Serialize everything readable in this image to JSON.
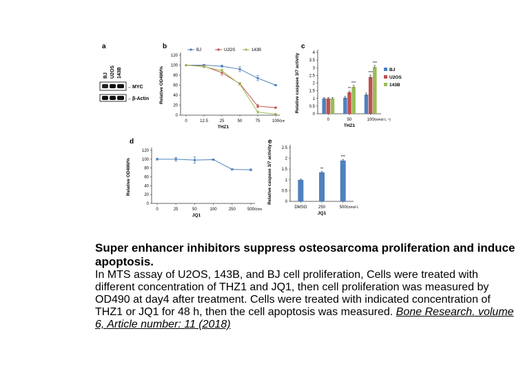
{
  "figure": {
    "panel_a": {
      "label": "a",
      "lanes": [
        "BJ",
        "U2OS",
        "143B"
      ],
      "bands": [
        "MYC",
        "β-Actin"
      ],
      "band_prefix": "←"
    },
    "panel_labels": [
      "b",
      "c",
      "d",
      "e"
    ]
  },
  "chart_data": [
    {
      "id": "b",
      "type": "line",
      "ylabel": "Relative OD490/%",
      "xlabel": "THZ1",
      "categories": [
        "0",
        "12.5",
        "25",
        "50",
        "75",
        "100"
      ],
      "x_unit": "/(nmol·L⁻¹)",
      "ylim": [
        0,
        120
      ],
      "yticks": [
        0,
        20,
        40,
        60,
        80,
        100,
        120
      ],
      "legend": "top",
      "series": [
        {
          "name": "BJ",
          "color": "#4f81bd",
          "values": [
            100,
            100,
            98,
            92,
            74,
            60
          ],
          "err": [
            0,
            1,
            2,
            5,
            5,
            1
          ]
        },
        {
          "name": "U2OS",
          "color": "#c0504d",
          "values": [
            100,
            98,
            85,
            63,
            18,
            15
          ],
          "err": [
            0,
            2,
            5,
            2,
            3,
            1
          ]
        },
        {
          "name": "143B",
          "color": "#9bbb59",
          "values": [
            100,
            97,
            89,
            62,
            6,
            2
          ],
          "err": [
            0,
            2,
            3,
            2,
            2,
            1
          ]
        }
      ]
    },
    {
      "id": "c",
      "type": "bar",
      "ylabel": "Relative caspase 3/7 activity",
      "xlabel": "THZ1",
      "categories": [
        "0",
        "50",
        "100"
      ],
      "x_unit": "/(nmol·L⁻¹)",
      "ylim": [
        0,
        4
      ],
      "yticks": [
        0,
        0.5,
        1,
        1.5,
        2,
        2.5,
        3,
        3.5,
        4
      ],
      "legend": "right",
      "series": [
        {
          "name": "BJ",
          "color": "#4f81bd",
          "values": [
            1.0,
            1.05,
            1.25
          ],
          "err": [
            0.05,
            0.08,
            0.1
          ]
        },
        {
          "name": "U2OS",
          "color": "#c0504d",
          "values": [
            1.0,
            1.4,
            2.4
          ],
          "err": [
            0.05,
            0.08,
            0.12
          ]
        },
        {
          "name": "143B",
          "color": "#9bbb59",
          "values": [
            1.0,
            1.75,
            3.05
          ],
          "err": [
            0.05,
            0.1,
            0.1
          ]
        }
      ],
      "annotations": [
        {
          "category": 1,
          "series": 1,
          "text": "**"
        },
        {
          "category": 1,
          "series": 2,
          "text": "***"
        },
        {
          "category": 2,
          "series": 1,
          "text": "***"
        },
        {
          "category": 2,
          "series": 2,
          "text": "***"
        }
      ]
    },
    {
      "id": "d",
      "type": "line",
      "ylabel": "Relative OD490/%",
      "xlabel": "JQ1",
      "categories": [
        "0",
        "25",
        "50",
        "100",
        "250",
        "500"
      ],
      "x_unit": "/(nmol·L⁻¹)",
      "ylim": [
        0,
        120
      ],
      "yticks": [
        0,
        20,
        40,
        60,
        80,
        100,
        120
      ],
      "series": [
        {
          "color": "#4f81bd",
          "values": [
            100,
            100,
            98,
            99,
            77,
            76
          ],
          "err": [
            2,
            4,
            7,
            1,
            1,
            2
          ]
        }
      ]
    },
    {
      "id": "e",
      "type": "bar",
      "ylabel": "Relative caspase 3/7 activity",
      "xlabel": "JQ1",
      "categories": [
        "DMSO",
        "250",
        "500"
      ],
      "x_unit": "/(nmol·L⁻¹)",
      "ylim": [
        0,
        2.5
      ],
      "yticks": [
        0,
        0.5,
        1,
        1.5,
        2,
        2.5
      ],
      "series": [
        {
          "color": "#4f81bd",
          "values": [
            1.0,
            1.35,
            1.9
          ],
          "err": [
            0.03,
            0.04,
            0.05
          ]
        }
      ],
      "annotations": [
        {
          "category": 1,
          "series": 0,
          "text": "**"
        },
        {
          "category": 2,
          "series": 0,
          "text": "***"
        }
      ]
    }
  ],
  "caption": {
    "title": "Super enhancer inhibitors suppress osteosarcoma proliferation and induce apoptosis.",
    "body": "In MTS assay of U2OS, 143B, and BJ cell proliferation, Cells were treated with different concentration of THZ1 and JQ1, then cell proliferation was measured by OD490 at day4 after treatment. Cells were treated with indicated concentration of THZ1 or JQ1 for 48 h, then the cell apoptosis was measured.",
    "citation": "Bone Research. volume 6, Article number: 11 (2018)"
  }
}
